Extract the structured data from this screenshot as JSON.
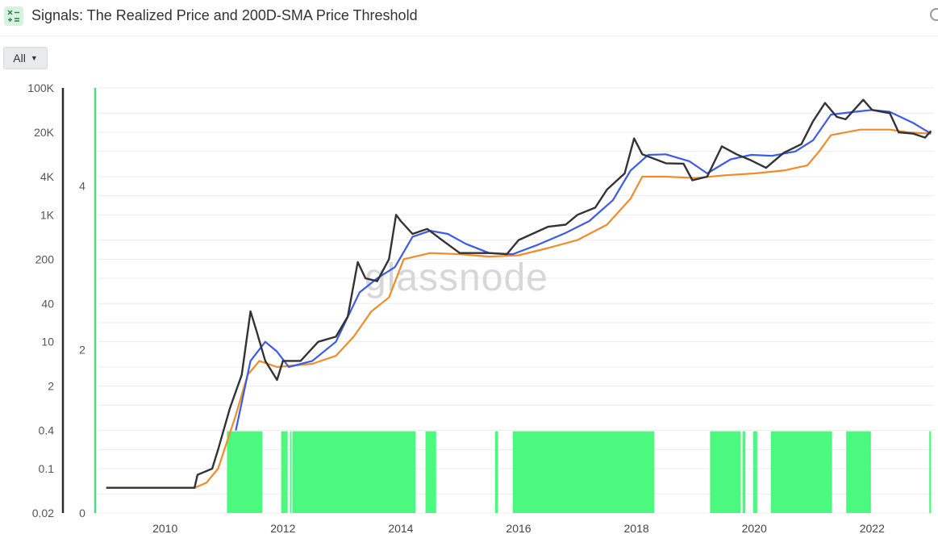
{
  "header": {
    "title": "Signals: The Realized Price and 200D-SMA Price Threshold"
  },
  "range_selector": {
    "label": "All"
  },
  "watermark": "glassnode",
  "colors": {
    "price": "#333333",
    "realized_price": "#f08c2a",
    "sma200": "#3d5bea",
    "signal": "#4cf97f",
    "signal_axis": "#4ade80"
  },
  "chart_data": {
    "type": "line",
    "x_axis": {
      "ticks": [
        "2010",
        "2012",
        "2014",
        "2016",
        "2018",
        "2020",
        "2022"
      ],
      "range": [
        2008.95,
        2023.05
      ]
    },
    "y_left": {
      "scale": "log",
      "ticks": [
        "100K",
        "20K",
        "4K",
        "1K",
        "200",
        "40",
        "10",
        "2",
        "0.4",
        "0.1",
        "0.02"
      ],
      "tick_values": [
        100000,
        20000,
        4000,
        1000,
        200,
        40,
        10,
        2,
        0.4,
        0.1,
        0.02
      ],
      "range": [
        0.02,
        100000
      ]
    },
    "y_right_signal": {
      "ticks": [
        "4",
        "2",
        "0"
      ],
      "range": [
        0,
        5.2
      ]
    },
    "grid": true,
    "series": [
      {
        "key": "price",
        "kind": "line",
        "points": [
          [
            2009.0,
            0.05
          ],
          [
            2010.5,
            0.05
          ],
          [
            2010.55,
            0.08
          ],
          [
            2010.8,
            0.1
          ],
          [
            2010.9,
            0.2
          ],
          [
            2011.1,
            0.9
          ],
          [
            2011.3,
            3
          ],
          [
            2011.45,
            30
          ],
          [
            2011.55,
            15
          ],
          [
            2011.7,
            5
          ],
          [
            2011.9,
            2.5
          ],
          [
            2012.0,
            5
          ],
          [
            2012.3,
            5
          ],
          [
            2012.6,
            10
          ],
          [
            2012.9,
            12
          ],
          [
            2013.1,
            25
          ],
          [
            2013.27,
            180
          ],
          [
            2013.4,
            100
          ],
          [
            2013.6,
            90
          ],
          [
            2013.8,
            200
          ],
          [
            2013.92,
            1000
          ],
          [
            2014.0,
            800
          ],
          [
            2014.2,
            500
          ],
          [
            2014.45,
            600
          ],
          [
            2014.7,
            400
          ],
          [
            2015.0,
            250
          ],
          [
            2015.5,
            250
          ],
          [
            2015.8,
            240
          ],
          [
            2016.0,
            400
          ],
          [
            2016.5,
            650
          ],
          [
            2016.8,
            700
          ],
          [
            2017.0,
            1000
          ],
          [
            2017.3,
            1300
          ],
          [
            2017.5,
            2500
          ],
          [
            2017.8,
            4500
          ],
          [
            2017.96,
            16000
          ],
          [
            2018.1,
            9000
          ],
          [
            2018.5,
            6500
          ],
          [
            2018.8,
            6400
          ],
          [
            2018.95,
            3500
          ],
          [
            2019.2,
            4000
          ],
          [
            2019.45,
            12000
          ],
          [
            2019.7,
            9000
          ],
          [
            2019.95,
            7200
          ],
          [
            2020.2,
            5500
          ],
          [
            2020.5,
            9500
          ],
          [
            2020.8,
            13000
          ],
          [
            2021.0,
            30000
          ],
          [
            2021.2,
            58000
          ],
          [
            2021.4,
            35000
          ],
          [
            2021.55,
            32000
          ],
          [
            2021.85,
            65000
          ],
          [
            2022.0,
            45000
          ],
          [
            2022.3,
            40000
          ],
          [
            2022.45,
            20000
          ],
          [
            2022.7,
            19000
          ],
          [
            2022.9,
            16500
          ],
          [
            2023.0,
            21000
          ]
        ]
      },
      {
        "key": "realized_price",
        "kind": "line",
        "points": [
          [
            2009.0,
            0.05
          ],
          [
            2010.5,
            0.05
          ],
          [
            2010.7,
            0.06
          ],
          [
            2010.9,
            0.1
          ],
          [
            2011.2,
            0.7
          ],
          [
            2011.4,
            3
          ],
          [
            2011.6,
            5
          ],
          [
            2011.9,
            4
          ],
          [
            2012.5,
            4.5
          ],
          [
            2012.9,
            6
          ],
          [
            2013.2,
            12
          ],
          [
            2013.5,
            30
          ],
          [
            2013.8,
            50
          ],
          [
            2014.05,
            200
          ],
          [
            2014.5,
            250
          ],
          [
            2015.0,
            240
          ],
          [
            2015.5,
            220
          ],
          [
            2016.0,
            230
          ],
          [
            2016.5,
            300
          ],
          [
            2017.0,
            400
          ],
          [
            2017.5,
            700
          ],
          [
            2017.9,
            1800
          ],
          [
            2018.1,
            4000
          ],
          [
            2018.5,
            4000
          ],
          [
            2019.0,
            3800
          ],
          [
            2019.5,
            4200
          ],
          [
            2020.0,
            4500
          ],
          [
            2020.5,
            5000
          ],
          [
            2020.9,
            6000
          ],
          [
            2021.1,
            10000
          ],
          [
            2021.3,
            18000
          ],
          [
            2021.8,
            22000
          ],
          [
            2022.3,
            22000
          ],
          [
            2022.6,
            20000
          ],
          [
            2023.0,
            19000
          ]
        ]
      },
      {
        "key": "sma200",
        "kind": "line",
        "points": [
          [
            2011.2,
            0.4
          ],
          [
            2011.45,
            5
          ],
          [
            2011.7,
            10
          ],
          [
            2011.9,
            7
          ],
          [
            2012.1,
            4
          ],
          [
            2012.5,
            5
          ],
          [
            2012.9,
            10
          ],
          [
            2013.3,
            60
          ],
          [
            2013.6,
            100
          ],
          [
            2013.9,
            150
          ],
          [
            2014.2,
            450
          ],
          [
            2014.5,
            560
          ],
          [
            2014.8,
            500
          ],
          [
            2015.1,
            350
          ],
          [
            2015.5,
            250
          ],
          [
            2015.9,
            240
          ],
          [
            2016.3,
            330
          ],
          [
            2016.8,
            520
          ],
          [
            2017.2,
            800
          ],
          [
            2017.6,
            1700
          ],
          [
            2017.9,
            5000
          ],
          [
            2018.2,
            8800
          ],
          [
            2018.5,
            9000
          ],
          [
            2018.9,
            7000
          ],
          [
            2019.2,
            4500
          ],
          [
            2019.6,
            7500
          ],
          [
            2019.95,
            8800
          ],
          [
            2020.3,
            8500
          ],
          [
            2020.7,
            10000
          ],
          [
            2021.0,
            15000
          ],
          [
            2021.3,
            38000
          ],
          [
            2021.7,
            42000
          ],
          [
            2022.0,
            45000
          ],
          [
            2022.3,
            42000
          ],
          [
            2022.7,
            28000
          ],
          [
            2023.0,
            19000
          ]
        ]
      },
      {
        "key": "signal",
        "kind": "area",
        "value": 1,
        "intervals": [
          [
            2011.05,
            2011.65
          ],
          [
            2011.97,
            2012.08
          ],
          [
            2012.12,
            2012.13
          ],
          [
            2012.16,
            2014.25
          ],
          [
            2014.42,
            2014.6
          ],
          [
            2015.6,
            2015.65
          ],
          [
            2015.9,
            2018.3
          ],
          [
            2019.25,
            2019.77
          ],
          [
            2019.8,
            2019.85
          ],
          [
            2019.98,
            2020.05
          ],
          [
            2020.28,
            2021.32
          ],
          [
            2021.56,
            2021.98
          ],
          [
            2022.97,
            2023.0
          ]
        ]
      }
    ]
  }
}
